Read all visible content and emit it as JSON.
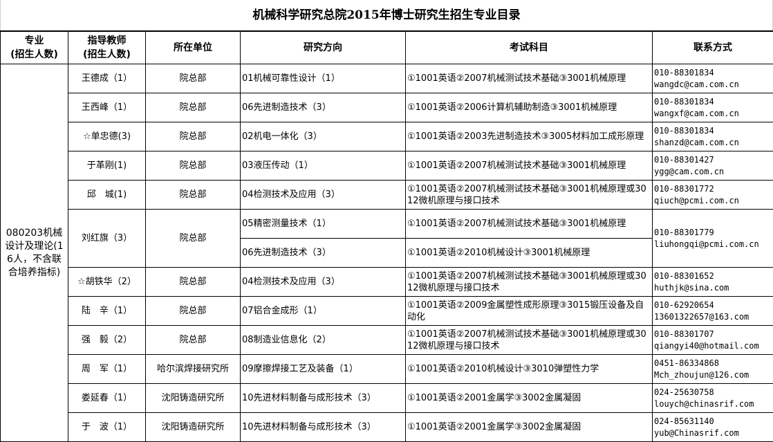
{
  "title": "机械科学研究总院2015年博士研究生招生专业目录",
  "headers": {
    "major": [
      "专业",
      "(招生人数)"
    ],
    "advisor": [
      "指导教师",
      "(招生人数)"
    ],
    "unit": "所在单位",
    "direction": "研究方向",
    "exam": "考试科目",
    "contact": "联系方式"
  },
  "major": "080203机械设计及理论(16人，不含联合培养指标)",
  "rows": [
    {
      "advisor": "王德成（1）",
      "unit": "院总部",
      "directions": [
        {
          "direction": "01机械可靠性设计（1）",
          "exam": "①1001英语②2007机械测试技术基础③3001机械原理"
        }
      ],
      "phone": "010-88301834",
      "email": "wangdc@cam.com.cn"
    },
    {
      "advisor": "王西峰（1）",
      "unit": "院总部",
      "directions": [
        {
          "direction": "06先进制造技术（3）",
          "exam": "①1001英语②2006计算机辅助制造③3001机械原理"
        }
      ],
      "phone": "010-88301834",
      "email": "wangxf@cam.com.cn"
    },
    {
      "advisor": "☆单忠德(3)",
      "unit": "院总部",
      "directions": [
        {
          "direction": "02机电一体化（3）",
          "exam": "①1001英语②2003先进制造技术③3005材料加工成形原理"
        }
      ],
      "phone": "010-88301834",
      "email": "shanzd@cam.com.cn"
    },
    {
      "advisor": "于革刚(1)",
      "unit": "院总部",
      "directions": [
        {
          "direction": "03液压传动（1）",
          "exam": "①1001英语②2007机械测试技术基础③3001机械原理"
        }
      ],
      "phone": "010-88301427",
      "email": "ygg@cam.com.cn"
    },
    {
      "advisor": "邱　城(1)",
      "unit": "院总部",
      "directions": [
        {
          "direction": "04检测技术及应用（3）",
          "exam": "①1001英语②2007机械测试技术基础③3001机械原理或3012微机原理与接口技术"
        }
      ],
      "phone": "010-88301772",
      "email": "qiuch@pcmi.com.cn"
    },
    {
      "advisor": "刘红旗（3）",
      "unit": "院总部",
      "directions": [
        {
          "direction": "05精密测量技术（1）",
          "exam": "①1001英语②2007机械测试技术基础③3001机械原理"
        },
        {
          "direction": "06先进制造技术（3）",
          "exam": "①1001英语②2010机械设计③3001机械原理"
        }
      ],
      "phone": "010-88301779",
      "email": "liuhongqi@pcmi.com.cn"
    },
    {
      "advisor": "☆胡铁华（2）",
      "unit": "院总部",
      "directions": [
        {
          "direction": "04检测技术及应用（3）",
          "exam": "①1001英语②2007机械测试技术基础③3001机械原理或3012微机原理与接口技术"
        }
      ],
      "phone": "010-88301652",
      "email": "huthjk@sina.com"
    },
    {
      "advisor": "陆　辛（1）",
      "unit": "院总部",
      "directions": [
        {
          "direction": "07铝合金成形（1）",
          "exam": "①1001英语②2009金属塑性成形原理③3015锻压设备及自动化"
        }
      ],
      "phone": "010-62920654",
      "email": "13601322657@163.com"
    },
    {
      "advisor": "强　毅（2）",
      "unit": "院总部",
      "directions": [
        {
          "direction": "08制造业信息化（2）",
          "exam": "①1001英语②2007机械测试技术基础③3001机械原理或3012微机原理与接口技术"
        }
      ],
      "phone": "010-88301707",
      "email": "qiangyi40@hotmail.com"
    },
    {
      "advisor": "周　军（1）",
      "unit": "哈尔滨焊接研究所",
      "directions": [
        {
          "direction": "09摩擦焊接工艺及装备（1）",
          "exam": "①1001英语②2010机械设计③3010弹塑性力学"
        }
      ],
      "phone": "0451-86334868",
      "email": "Mch_zhoujun@126.com"
    },
    {
      "advisor": "娄延春（1）",
      "unit": "沈阳铸造研究所",
      "directions": [
        {
          "direction": "10先进材料制备与成形技术（3）",
          "exam": "①1001英语②2001金属学③3002金属凝固"
        }
      ],
      "phone": "024-25630758",
      "email": "louych@chinasrif.com"
    },
    {
      "advisor": "于　波（1）",
      "unit": "沈阳铸造研究所",
      "directions": [
        {
          "direction": "10先进材料制备与成形技术（3）",
          "exam": "①1001英语②2001金属学③3002金属凝固"
        }
      ],
      "phone": "024-85631140",
      "email": "yub@Chinasrif.com"
    }
  ]
}
